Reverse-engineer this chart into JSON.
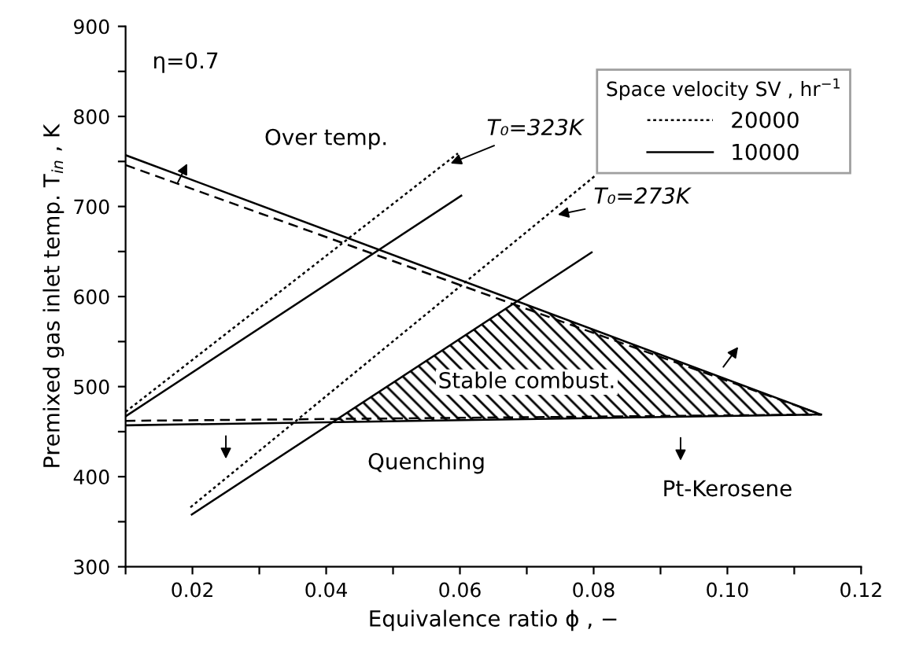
{
  "chart_data": {
    "type": "line",
    "xlabel": "Equivalence ratio ϕ , −",
    "ylabel": "Premixed gas inlet temp. T$_{in}$ , K",
    "legend_title": "Space velocity SV , hr$^{−1}$",
    "xlim": [
      0.01,
      0.12
    ],
    "xticks": [
      {
        "value": 0.01,
        "label": null
      },
      {
        "value": 0.02,
        "label": "0.02"
      },
      {
        "value": 0.03,
        "label": null
      },
      {
        "value": 0.04,
        "label": "0.04"
      },
      {
        "value": 0.05,
        "label": null
      },
      {
        "value": 0.06,
        "label": "0.06"
      },
      {
        "value": 0.07,
        "label": null
      },
      {
        "value": 0.08,
        "label": "0.08"
      },
      {
        "value": 0.09,
        "label": null
      },
      {
        "value": 0.1,
        "label": "0.10"
      },
      {
        "value": 0.11,
        "label": null
      },
      {
        "value": 0.12,
        "label": "0.12"
      }
    ],
    "ylim": [
      300,
      900
    ],
    "yticks": [
      300,
      {
        "value": 350,
        "label": null
      },
      400,
      {
        "value": 450,
        "label": null
      },
      500,
      {
        "value": 550,
        "label": null
      },
      600,
      {
        "value": 650,
        "label": null
      },
      700,
      {
        "value": 750,
        "label": null
      },
      800,
      {
        "value": 850,
        "label": null
      },
      900
    ],
    "grid": false,
    "legend": "top right",
    "marker": "none",
    "series": [
      {
        "name": "20000",
        "color": "#000000",
        "line_style": "dotted",
        "x": [
          0.01,
          0.0597
        ],
        "values": [
          472,
          759
        ]
      },
      {
        "name": "10000",
        "color": "#000000",
        "line_style": "solid",
        "x": [
          0.01,
          0.0602
        ],
        "values": [
          467,
          712
        ]
      },
      {
        "color": "#000000",
        "line_style": "dotted",
        "x": [
          0.0197,
          0.0802
        ],
        "values": [
          366,
          734
        ]
      },
      {
        "color": "#000000",
        "line_style": "solid",
        "x": [
          0.0199,
          0.0797
        ],
        "values": [
          358,
          649
        ]
      },
      {
        "color": "#000000",
        "line_style": "dashed",
        "x": [
          0.01,
          0.114
        ],
        "values": [
          746,
          469
        ]
      },
      {
        "color": "#000000",
        "line_style": "solid",
        "x": [
          0.01,
          0.114
        ],
        "values": [
          757,
          469
        ]
      },
      {
        "color": "#000000",
        "line_style": "dashed",
        "x": [
          0.01,
          0.114
        ],
        "values": [
          462,
          469
        ]
      },
      {
        "color": "#000000",
        "line_style": "solid",
        "x": [
          0.01,
          0.114
        ],
        "values": [
          457,
          469
        ]
      }
    ],
    "annotations": [
      "η=0.7",
      "Over temp.",
      "Stable combust.",
      "Quenching",
      "Pt-Kerosene",
      {
        "text": "T₀=323K",
        "x": 0.058,
        "y": 746
      },
      {
        "text": "T₀=273K",
        "x": 0.074,
        "y": 690
      }
    ]
  }
}
